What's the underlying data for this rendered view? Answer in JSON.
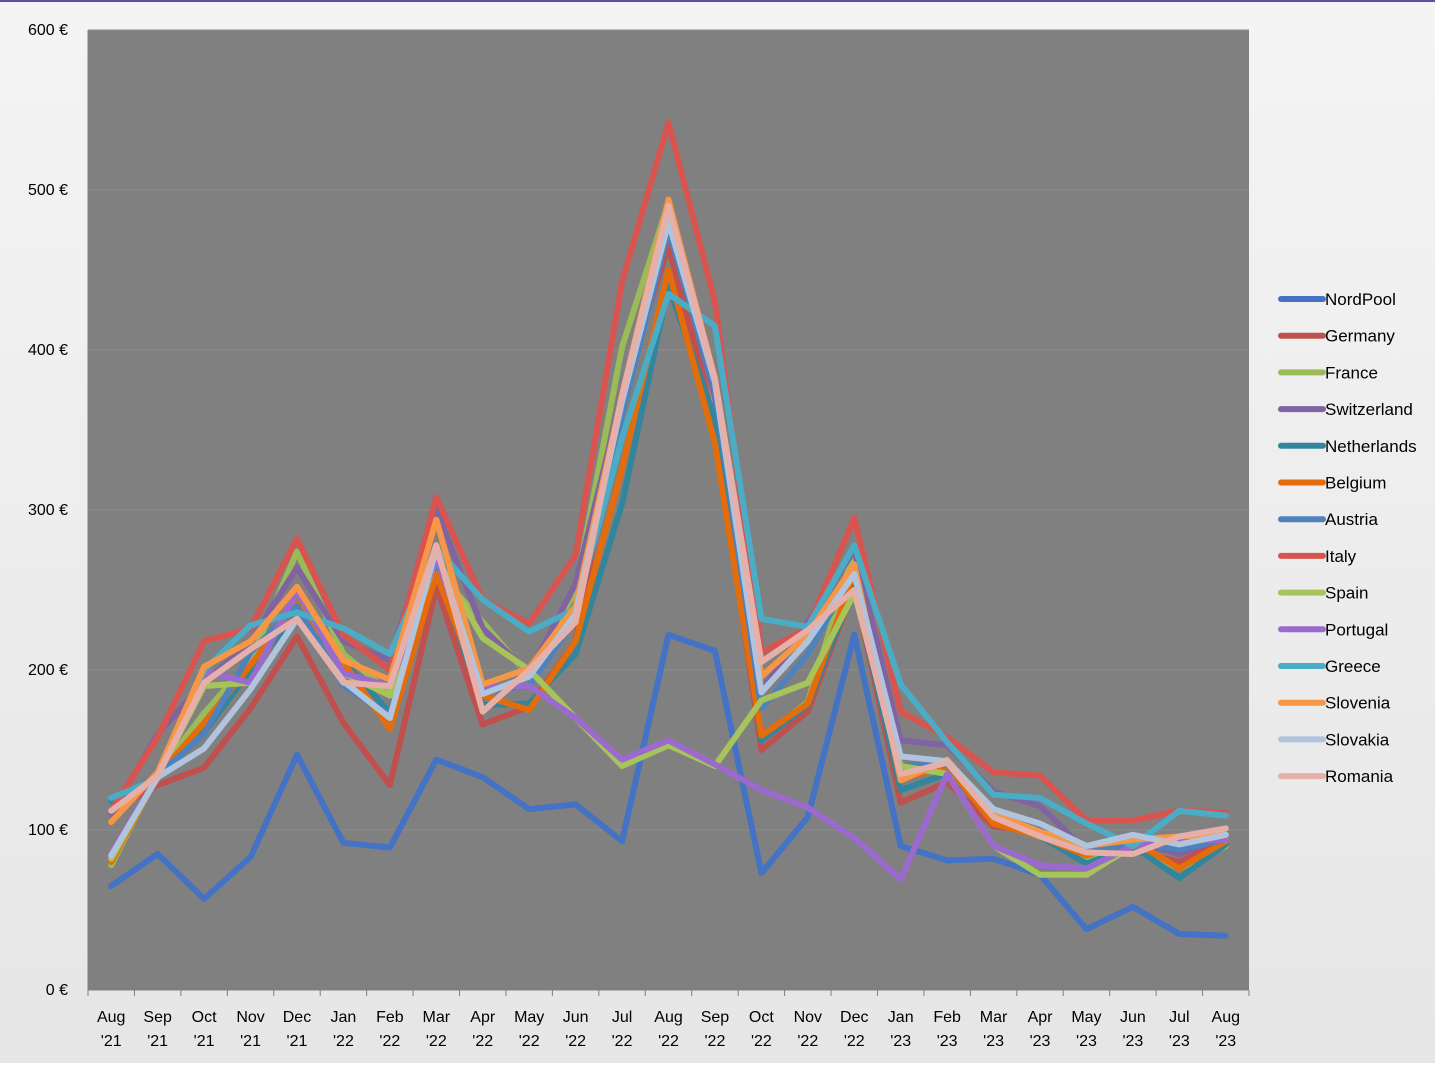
{
  "chart_data": {
    "type": "line",
    "title": "",
    "xlabel": "",
    "ylabel": "",
    "ylim": [
      0,
      600
    ],
    "yticks": [
      0,
      100,
      200,
      300,
      400,
      500,
      600
    ],
    "ytick_labels": [
      "0 €",
      "100 €",
      "200 €",
      "300 €",
      "400 €",
      "500 €",
      "600 €"
    ],
    "grid": true,
    "legend_position": "right",
    "plot_background": "#808080",
    "categories": [
      [
        "Aug",
        "'21"
      ],
      [
        "Sep",
        "'21"
      ],
      [
        "Oct",
        "'21"
      ],
      [
        "Nov",
        "'21"
      ],
      [
        "Dec",
        "'21"
      ],
      [
        "Jan",
        "'22"
      ],
      [
        "Feb",
        "'22"
      ],
      [
        "Mar",
        "'22"
      ],
      [
        "Apr",
        "'22"
      ],
      [
        "May",
        "'22"
      ],
      [
        "Jun",
        "'22"
      ],
      [
        "Jul",
        "'22"
      ],
      [
        "Aug",
        "'22"
      ],
      [
        "Sep",
        "'22"
      ],
      [
        "Oct",
        "'22"
      ],
      [
        "Nov",
        "'22"
      ],
      [
        "Dec",
        "'22"
      ],
      [
        "Jan",
        "'23"
      ],
      [
        "Feb",
        "'23"
      ],
      [
        "Mar",
        "'23"
      ],
      [
        "Apr",
        "'23"
      ],
      [
        "May",
        "'23"
      ],
      [
        "Jun",
        "'23"
      ],
      [
        "Jul",
        "'23"
      ],
      [
        "Aug",
        "'23"
      ]
    ],
    "series": [
      {
        "name": "NordPool",
        "color": "#4472C4",
        "values": [
          65,
          85,
          57,
          83,
          147,
          92,
          89,
          144,
          133,
          113,
          116,
          93,
          222,
          212,
          73,
          108,
          222,
          90,
          81,
          82,
          72,
          38,
          52,
          35,
          34
        ]
      },
      {
        "name": "Germany",
        "color": "#C0504D",
        "values": [
          112,
          128,
          139,
          176,
          221,
          167,
          128,
          252,
          166,
          177,
          218,
          374,
          465,
          355,
          150,
          174,
          252,
          117,
          130,
          102,
          100,
          83,
          87,
          80,
          94
        ]
      },
      {
        "name": "France",
        "color": "#9BBB59",
        "values": [
          78,
          135,
          173,
          206,
          274,
          210,
          186,
          262,
          230,
          196,
          250,
          402,
          492,
          368,
          157,
          180,
          275,
          140,
          140,
          110,
          100,
          80,
          90,
          76,
          90
        ]
      },
      {
        "name": "Switzerland",
        "color": "#8064A2",
        "values": [
          110,
          160,
          192,
          218,
          264,
          218,
          206,
          300,
          226,
          198,
          254,
          372,
          480,
          370,
          186,
          230,
          275,
          156,
          153,
          124,
          115,
          87,
          93,
          85,
          96
        ]
      },
      {
        "name": "Netherlands",
        "color": "#31859C",
        "values": [
          118,
          133,
          161,
          200,
          236,
          206,
          173,
          263,
          178,
          179,
          210,
          304,
          440,
          357,
          156,
          178,
          253,
          125,
          135,
          111,
          96,
          79,
          90,
          70,
          91
        ]
      },
      {
        "name": "Belgium",
        "color": "#E46C0A",
        "values": [
          80,
          134,
          167,
          203,
          241,
          205,
          163,
          260,
          184,
          175,
          218,
          326,
          450,
          342,
          159,
          179,
          261,
          132,
          140,
          104,
          96,
          84,
          93,
          76,
          93
        ]
      },
      {
        "name": "Austria",
        "color": "#4F81BD",
        "values": [
          112,
          134,
          160,
          211,
          240,
          190,
          172,
          276,
          187,
          190,
          232,
          360,
          475,
          375,
          176,
          210,
          262,
          140,
          141,
          110,
          100,
          86,
          92,
          88,
          94
        ]
      },
      {
        "name": "Italy",
        "color": "#D9534F",
        "values": [
          112,
          158,
          218,
          226,
          282,
          222,
          200,
          308,
          244,
          229,
          272,
          443,
          542,
          430,
          211,
          226,
          295,
          174,
          158,
          136,
          134,
          106,
          106,
          112,
          111
        ]
      },
      {
        "name": "Spain",
        "color": "#A6C45A",
        "values": [
          82,
          134,
          190,
          192,
          250,
          198,
          184,
          270,
          220,
          200,
          170,
          140,
          153,
          140,
          181,
          192,
          248,
          140,
          135,
          90,
          72,
          72,
          90,
          94,
          94
        ]
      },
      {
        "name": "Portugal",
        "color": "#9C6ACE",
        "values": [
          85,
          134,
          199,
          192,
          250,
          198,
          190,
          270,
          190,
          190,
          170,
          144,
          156,
          141,
          125,
          114,
          95,
          69,
          135,
          90,
          78,
          76,
          90,
          94,
          94
        ]
      },
      {
        "name": "Greece",
        "color": "#4BACC6",
        "values": [
          120,
          132,
          200,
          228,
          236,
          226,
          210,
          276,
          244,
          224,
          238,
          345,
          435,
          415,
          232,
          227,
          278,
          191,
          155,
          122,
          120,
          104,
          90,
          112,
          109
        ]
      },
      {
        "name": "Slovenia",
        "color": "#F79646",
        "values": [
          105,
          136,
          202,
          218,
          252,
          206,
          194,
          294,
          191,
          201,
          240,
          372,
          494,
          382,
          196,
          222,
          266,
          131,
          144,
          110,
          99,
          90,
          94,
          96,
          97
        ]
      },
      {
        "name": "Slovakia",
        "color": "#B0C4DE",
        "values": [
          84,
          133,
          151,
          188,
          232,
          193,
          170,
          276,
          185,
          196,
          235,
          368,
          480,
          380,
          186,
          218,
          260,
          146,
          143,
          113,
          104,
          90,
          97,
          91,
          97
        ]
      },
      {
        "name": "Romania",
        "color": "#E6B0AA",
        "values": [
          112,
          134,
          192,
          213,
          232,
          192,
          190,
          278,
          174,
          200,
          230,
          372,
          490,
          382,
          205,
          225,
          250,
          135,
          142,
          108,
          96,
          86,
          85,
          96,
          101
        ]
      }
    ]
  }
}
